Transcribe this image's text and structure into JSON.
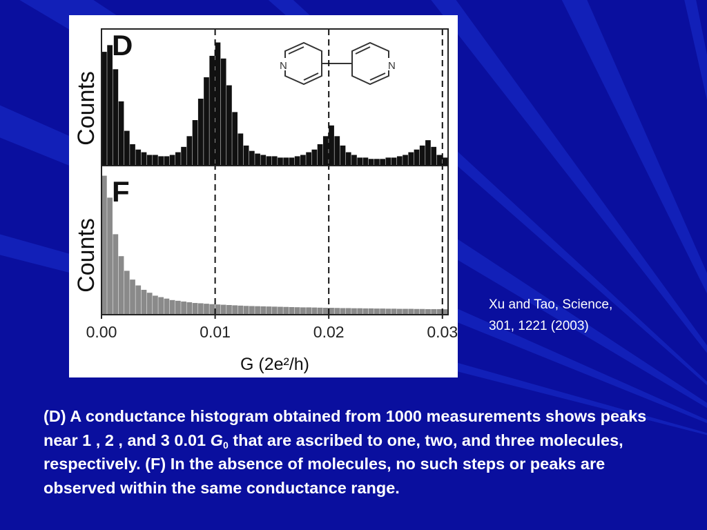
{
  "colors": {
    "background": "#0a0f9e",
    "ray": "#1a2fcf",
    "text": "#ffffff",
    "histogram": "#111111",
    "histogram_light": "#8a8a8a"
  },
  "citation": {
    "line1": "Xu and Tao, Science,",
    "line2": "301, 1221 (2003)"
  },
  "caption": {
    "part1": "(D) A conductance histogram obtained from 1000 measurements shows peaks near 1 , 2 , and 3  0.01 ",
    "symbol": "G",
    "subscript": "0",
    "part2": " that are ascribed to one, two, and three molecules, respectively. (F) In the absence of molecules, no such steps or peaks are observed within the same conductance range."
  },
  "chart_data": [
    {
      "type": "bar",
      "panel_label": "D",
      "ylabel": "Counts",
      "xlabel": "G (2e²/h)",
      "xlim": [
        0.0,
        0.0305
      ],
      "ylim": [
        0,
        1.0
      ],
      "xticks": [
        "0.00",
        "0.01",
        "0.02",
        "0.03"
      ],
      "tick_values": [
        0.0,
        0.01,
        0.02,
        0.03
      ],
      "reference_lines": [
        0.01,
        0.02,
        0.03
      ],
      "inset": "4,4'-bipyridine structure",
      "inset_atoms": [
        "N",
        "N"
      ],
      "x": [
        0.0,
        0.0005,
        0.001,
        0.0015,
        0.002,
        0.0025,
        0.003,
        0.0035,
        0.004,
        0.0045,
        0.005,
        0.0055,
        0.006,
        0.0065,
        0.007,
        0.0075,
        0.008,
        0.0085,
        0.009,
        0.0095,
        0.01,
        0.0105,
        0.011,
        0.0115,
        0.012,
        0.0125,
        0.013,
        0.0135,
        0.014,
        0.0145,
        0.015,
        0.0155,
        0.016,
        0.0165,
        0.017,
        0.0175,
        0.018,
        0.0185,
        0.019,
        0.0195,
        0.02,
        0.0205,
        0.021,
        0.0215,
        0.022,
        0.0225,
        0.023,
        0.0235,
        0.024,
        0.0245,
        0.025,
        0.0255,
        0.026,
        0.0265,
        0.027,
        0.0275,
        0.028,
        0.0285,
        0.029,
        0.0295,
        0.03
      ],
      "values": [
        0.85,
        0.9,
        0.72,
        0.48,
        0.26,
        0.16,
        0.12,
        0.1,
        0.08,
        0.08,
        0.07,
        0.07,
        0.08,
        0.1,
        0.14,
        0.22,
        0.34,
        0.5,
        0.66,
        0.82,
        0.92,
        0.8,
        0.6,
        0.4,
        0.24,
        0.15,
        0.11,
        0.09,
        0.08,
        0.07,
        0.07,
        0.06,
        0.06,
        0.06,
        0.07,
        0.08,
        0.1,
        0.12,
        0.16,
        0.22,
        0.3,
        0.22,
        0.15,
        0.1,
        0.08,
        0.06,
        0.06,
        0.05,
        0.05,
        0.05,
        0.06,
        0.06,
        0.07,
        0.08,
        0.1,
        0.12,
        0.15,
        0.19,
        0.14,
        0.08,
        0.06
      ]
    },
    {
      "type": "bar",
      "panel_label": "F",
      "ylabel": "Counts",
      "xlabel": "G (2e²/h)",
      "xlim": [
        0.0,
        0.0305
      ],
      "ylim": [
        0,
        1.0
      ],
      "xticks": [
        "0.00",
        "0.01",
        "0.02",
        "0.03"
      ],
      "tick_values": [
        0.0,
        0.01,
        0.02,
        0.03
      ],
      "reference_lines": [
        0.01,
        0.02,
        0.03
      ],
      "x": [
        0.0,
        0.0005,
        0.001,
        0.0015,
        0.002,
        0.0025,
        0.003,
        0.0035,
        0.004,
        0.0045,
        0.005,
        0.0055,
        0.006,
        0.0065,
        0.007,
        0.0075,
        0.008,
        0.0085,
        0.009,
        0.0095,
        0.01,
        0.0105,
        0.011,
        0.0115,
        0.012,
        0.0125,
        0.013,
        0.0135,
        0.014,
        0.0145,
        0.015,
        0.0155,
        0.016,
        0.0165,
        0.017,
        0.0175,
        0.018,
        0.0185,
        0.019,
        0.0195,
        0.02,
        0.0205,
        0.021,
        0.0215,
        0.022,
        0.0225,
        0.023,
        0.0235,
        0.024,
        0.0245,
        0.025,
        0.0255,
        0.026,
        0.0265,
        0.027,
        0.0275,
        0.028,
        0.0285,
        0.029,
        0.0295,
        0.03
      ],
      "values": [
        0.95,
        0.8,
        0.55,
        0.4,
        0.3,
        0.24,
        0.2,
        0.17,
        0.15,
        0.13,
        0.12,
        0.11,
        0.1,
        0.095,
        0.09,
        0.085,
        0.08,
        0.078,
        0.075,
        0.072,
        0.07,
        0.068,
        0.066,
        0.064,
        0.062,
        0.06,
        0.059,
        0.058,
        0.057,
        0.056,
        0.055,
        0.054,
        0.053,
        0.052,
        0.051,
        0.05,
        0.05,
        0.049,
        0.048,
        0.047,
        0.047,
        0.046,
        0.045,
        0.045,
        0.044,
        0.044,
        0.043,
        0.043,
        0.042,
        0.042,
        0.041,
        0.041,
        0.04,
        0.04,
        0.04,
        0.039,
        0.039,
        0.038,
        0.038,
        0.038,
        0.037
      ]
    }
  ]
}
